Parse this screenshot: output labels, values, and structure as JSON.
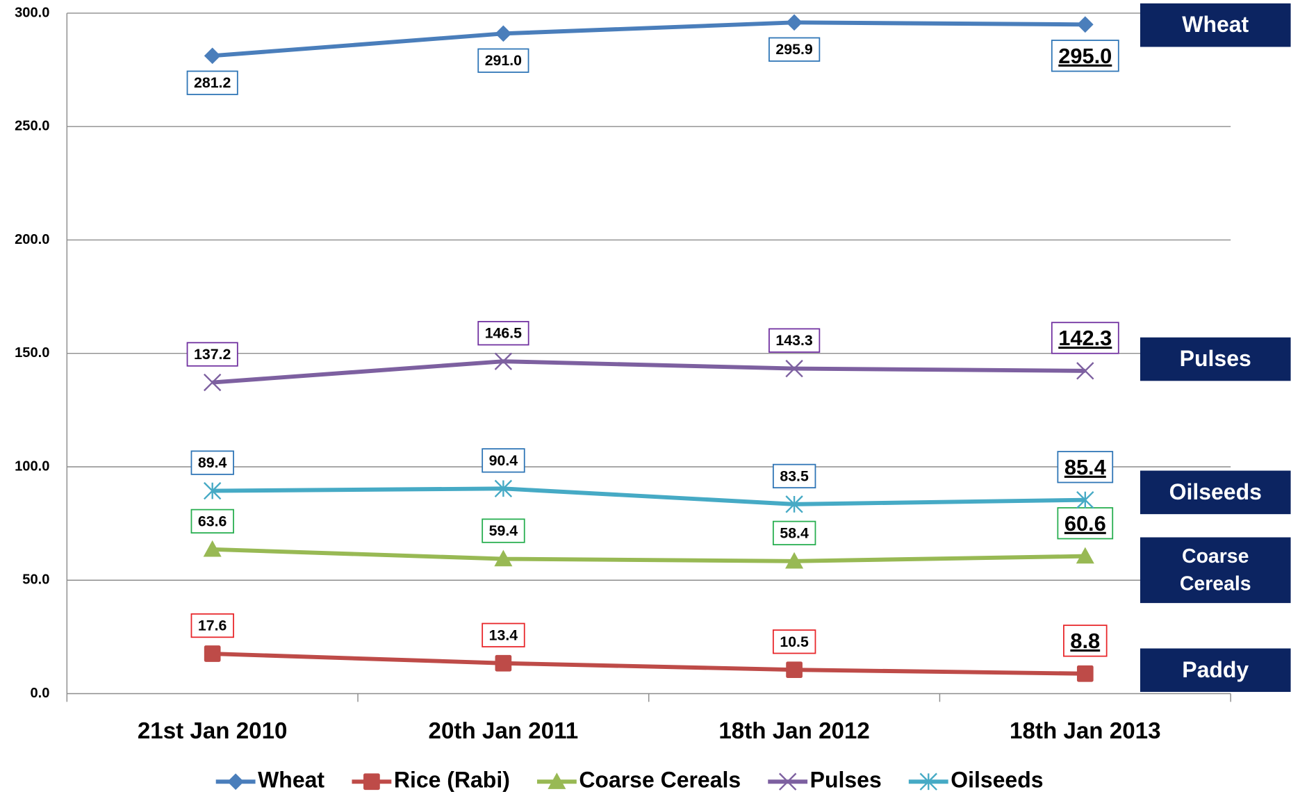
{
  "chart_data": {
    "type": "line",
    "categories": [
      "21st Jan 2010",
      "20th Jan 2011",
      "18th Jan 2012",
      "18th Jan 2013"
    ],
    "series": [
      {
        "name": "Wheat",
        "color": "#4a7ebb",
        "values": [
          281.2,
          291.0,
          295.9,
          295.0
        ],
        "value_labels": [
          "281.2",
          "291.0",
          "295.9",
          "295.0"
        ]
      },
      {
        "name": "Rice (Rabi)",
        "color": "#be4b48",
        "values": [
          17.6,
          13.4,
          10.5,
          8.8
        ],
        "value_labels": [
          "17.6",
          "13.4",
          "10.5",
          "8.8"
        ]
      },
      {
        "name": "Coarse Cereals",
        "color": "#98b954",
        "values": [
          63.6,
          59.4,
          58.4,
          60.6
        ],
        "value_labels": [
          "63.6",
          "59.4",
          "58.4",
          "60.6"
        ]
      },
      {
        "name": "Pulses",
        "color": "#7d60a0",
        "values": [
          137.2,
          146.5,
          143.3,
          142.3
        ],
        "value_labels": [
          "137.2",
          "146.5",
          "143.3",
          "142.3"
        ]
      },
      {
        "name": "Oilseeds",
        "color": "#46aac5",
        "values": [
          89.4,
          90.4,
          83.5,
          85.4
        ],
        "value_labels": [
          "89.4",
          "90.4",
          "83.5",
          "85.4"
        ]
      }
    ],
    "ylim": [
      0,
      300
    ],
    "yticks": [
      {
        "value": 0,
        "label": "0.0"
      },
      {
        "value": 50,
        "label": "50.0"
      },
      {
        "value": 100,
        "label": "100.0"
      },
      {
        "value": 150,
        "label": "150.0"
      },
      {
        "value": 200,
        "label": "200.0"
      },
      {
        "value": 250,
        "label": "250.0"
      },
      {
        "value": 300,
        "label": "300.0"
      }
    ],
    "grid": true,
    "legend": "bottom",
    "annotations": [
      "Wheat",
      "Pulses",
      "Oilseeds",
      "Coarse Cereals",
      "Paddy"
    ]
  }
}
